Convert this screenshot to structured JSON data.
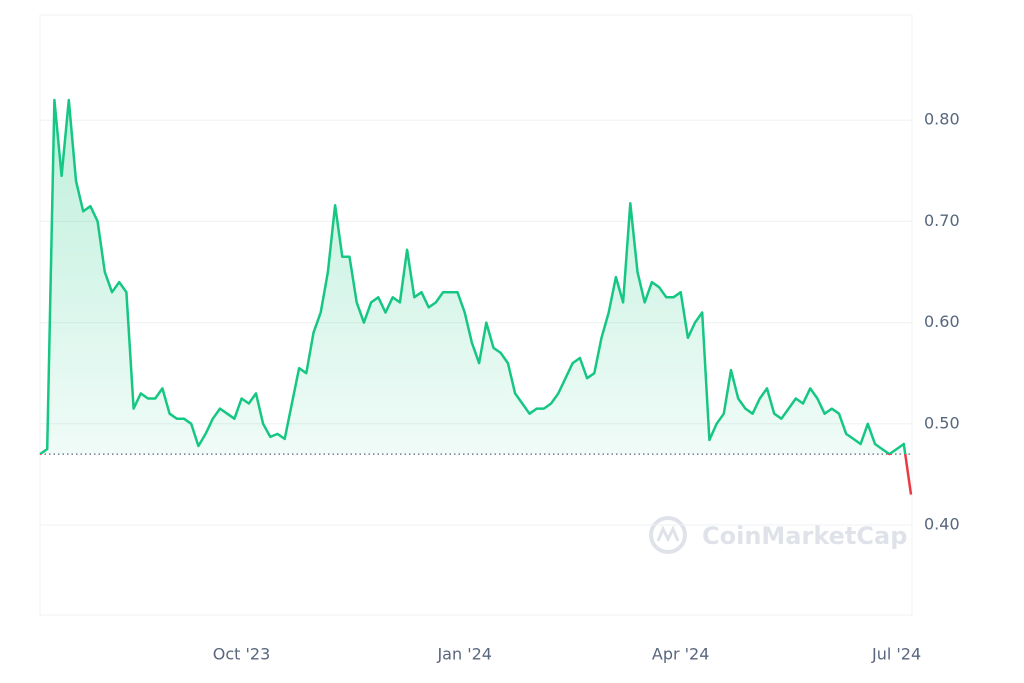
{
  "chart_data": {
    "type": "line",
    "watermark": "CoinMarketCap",
    "color": "#16c784",
    "down_color": "#ea3943",
    "baseline": 0.47,
    "categories": [
      null,
      null,
      null,
      null,
      null,
      null,
      null,
      null,
      null,
      null,
      null,
      null,
      null,
      null,
      null,
      null,
      null,
      null,
      null,
      null,
      null,
      null,
      null,
      null,
      null,
      null,
      null,
      null,
      "Oct '23",
      null,
      null,
      null,
      null,
      null,
      null,
      null,
      null,
      null,
      null,
      null,
      null,
      null,
      null,
      null,
      null,
      null,
      null,
      null,
      null,
      null,
      null,
      null,
      null,
      null,
      null,
      null,
      null,
      null,
      null,
      "Jan '24",
      null,
      null,
      null,
      null,
      null,
      null,
      null,
      null,
      null,
      null,
      null,
      null,
      null,
      null,
      null,
      null,
      null,
      null,
      null,
      null,
      null,
      null,
      null,
      null,
      null,
      null,
      null,
      null,
      null,
      "Apr '24",
      null,
      null,
      null,
      null,
      null,
      null,
      null,
      null,
      null,
      null,
      null,
      null,
      null,
      null,
      null,
      null,
      null,
      null,
      null,
      null,
      null,
      null,
      null,
      null,
      null,
      null,
      null,
      null,
      null,
      "Jul '24",
      null,
      null
    ],
    "values": [
      0.47,
      0.475,
      0.82,
      0.745,
      0.82,
      0.74,
      0.71,
      0.715,
      0.7,
      0.65,
      0.63,
      0.64,
      0.63,
      0.515,
      0.53,
      0.525,
      0.525,
      0.535,
      0.51,
      0.505,
      0.505,
      0.5,
      0.478,
      0.49,
      0.505,
      0.515,
      0.51,
      0.505,
      0.525,
      0.52,
      0.53,
      0.5,
      0.487,
      0.49,
      0.485,
      0.52,
      0.555,
      0.55,
      0.59,
      0.61,
      0.65,
      0.716,
      0.665,
      0.665,
      0.62,
      0.6,
      0.62,
      0.625,
      0.61,
      0.625,
      0.62,
      0.672,
      0.625,
      0.63,
      0.615,
      0.62,
      0.63,
      0.63,
      0.63,
      0.61,
      0.58,
      0.56,
      0.6,
      0.575,
      0.57,
      0.56,
      0.53,
      0.52,
      0.51,
      0.515,
      0.515,
      0.52,
      0.53,
      0.545,
      0.56,
      0.565,
      0.545,
      0.55,
      0.585,
      0.61,
      0.645,
      0.62,
      0.718,
      0.65,
      0.62,
      0.64,
      0.635,
      0.625,
      0.625,
      0.63,
      0.585,
      0.6,
      0.61,
      0.484,
      0.5,
      0.51,
      0.553,
      0.525,
      0.515,
      0.51,
      0.525,
      0.535,
      0.51,
      0.505,
      0.515,
      0.525,
      0.52,
      0.535,
      0.525,
      0.51,
      0.515,
      0.51,
      0.49,
      0.485,
      0.48,
      0.5,
      0.48,
      0.475,
      0.47,
      0.475,
      0.48,
      0.43
    ],
    "ylim": [
      0.311,
      0.904
    ],
    "yticks": [
      {
        "value": 0.4,
        "label": "0.40"
      },
      {
        "value": 0.5,
        "label": "0.50"
      },
      {
        "value": 0.6,
        "label": "0.60"
      },
      {
        "value": 0.7,
        "label": "0.70"
      },
      {
        "value": 0.8,
        "label": "0.80"
      }
    ],
    "grid": true
  }
}
